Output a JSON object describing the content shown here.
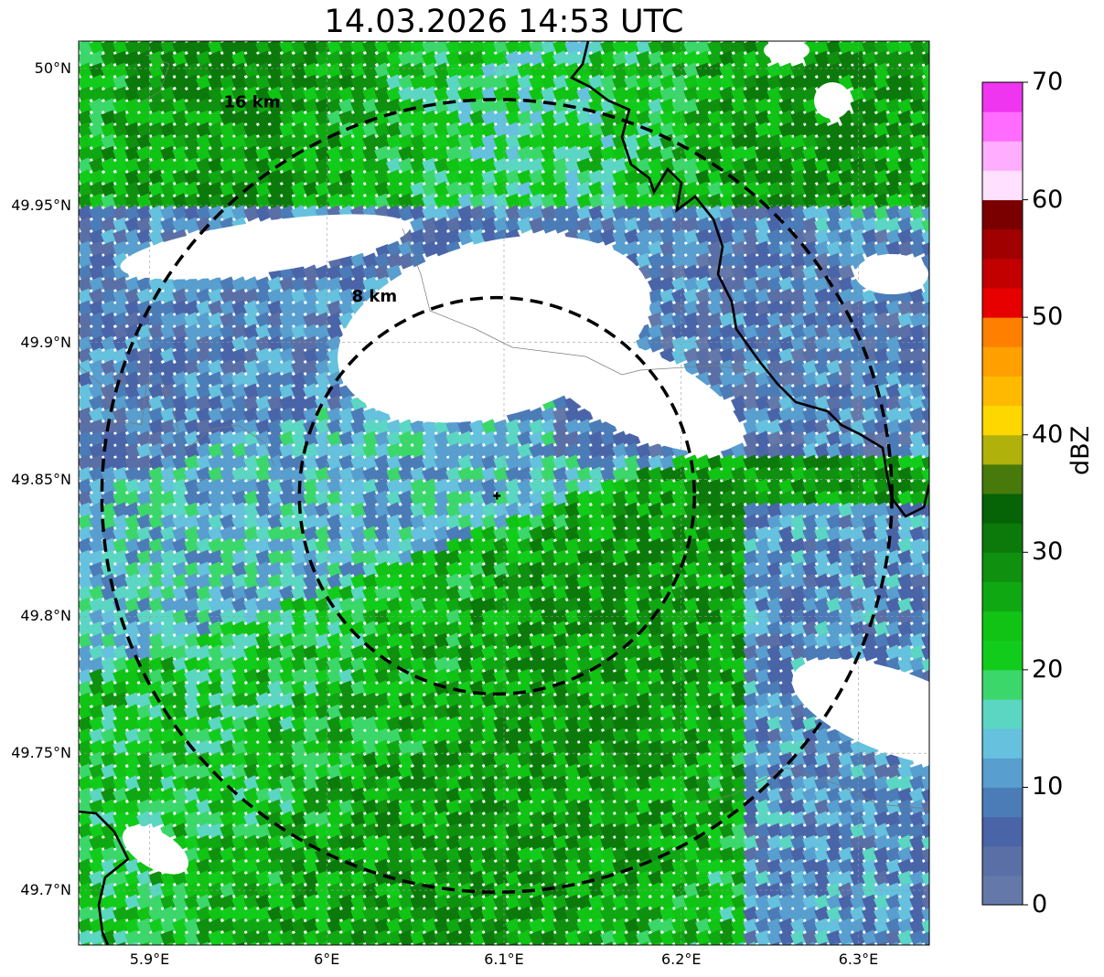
{
  "title": "14.03.2026 14:53 UTC",
  "map": {
    "lon_range": [
      5.86,
      6.34
    ],
    "lat_range": [
      49.68,
      50.01
    ],
    "radar_site": {
      "lon": 6.096,
      "lat": 49.844
    },
    "lon_ticks": [
      {
        "value": 5.9,
        "label": "5.9°E"
      },
      {
        "value": 6.0,
        "label": "6°E"
      },
      {
        "value": 6.1,
        "label": "6.1°E"
      },
      {
        "value": 6.2,
        "label": "6.2°E"
      },
      {
        "value": 6.3,
        "label": "6.3°E"
      }
    ],
    "lat_ticks": [
      {
        "value": 50.0,
        "label": "50°N"
      },
      {
        "value": 49.95,
        "label": "49.95°N"
      },
      {
        "value": 49.9,
        "label": "49.9°N"
      },
      {
        "value": 49.85,
        "label": "49.85°N"
      },
      {
        "value": 49.8,
        "label": "49.8°N"
      },
      {
        "value": 49.75,
        "label": "49.75°N"
      },
      {
        "value": 49.7,
        "label": "49.7°N"
      }
    ],
    "range_rings": [
      {
        "radius_km": 8,
        "label": "8 km"
      },
      {
        "radius_km": 16,
        "label": "16 km"
      }
    ],
    "gridlines": true,
    "border_color": "#000000"
  },
  "colorbar": {
    "label": "dBZ",
    "min": 0,
    "max": 70,
    "step": 2.5,
    "tick_values": [
      0,
      10,
      20,
      30,
      40,
      50,
      60,
      70
    ],
    "tick_labels": [
      "0",
      "10",
      "20",
      "30",
      "40",
      "50",
      "60",
      "70"
    ],
    "colors": [
      "#6479a9",
      "#5a6fa5",
      "#4a64a8",
      "#4b7cb7",
      "#589ecf",
      "#65c1dd",
      "#5bd6c2",
      "#3bd76a",
      "#12cc1c",
      "#11c314",
      "#10a812",
      "#0f900f",
      "#0b7a0b",
      "#066306",
      "#477a0a",
      "#b0b10b",
      "#ffd700",
      "#ffba00",
      "#ff9f00",
      "#ff7f00",
      "#e70000",
      "#c20000",
      "#a00000",
      "#7a0000",
      "#ffe0ff",
      "#ffaeff",
      "#ff6cff",
      "#f035f0"
    ]
  }
}
